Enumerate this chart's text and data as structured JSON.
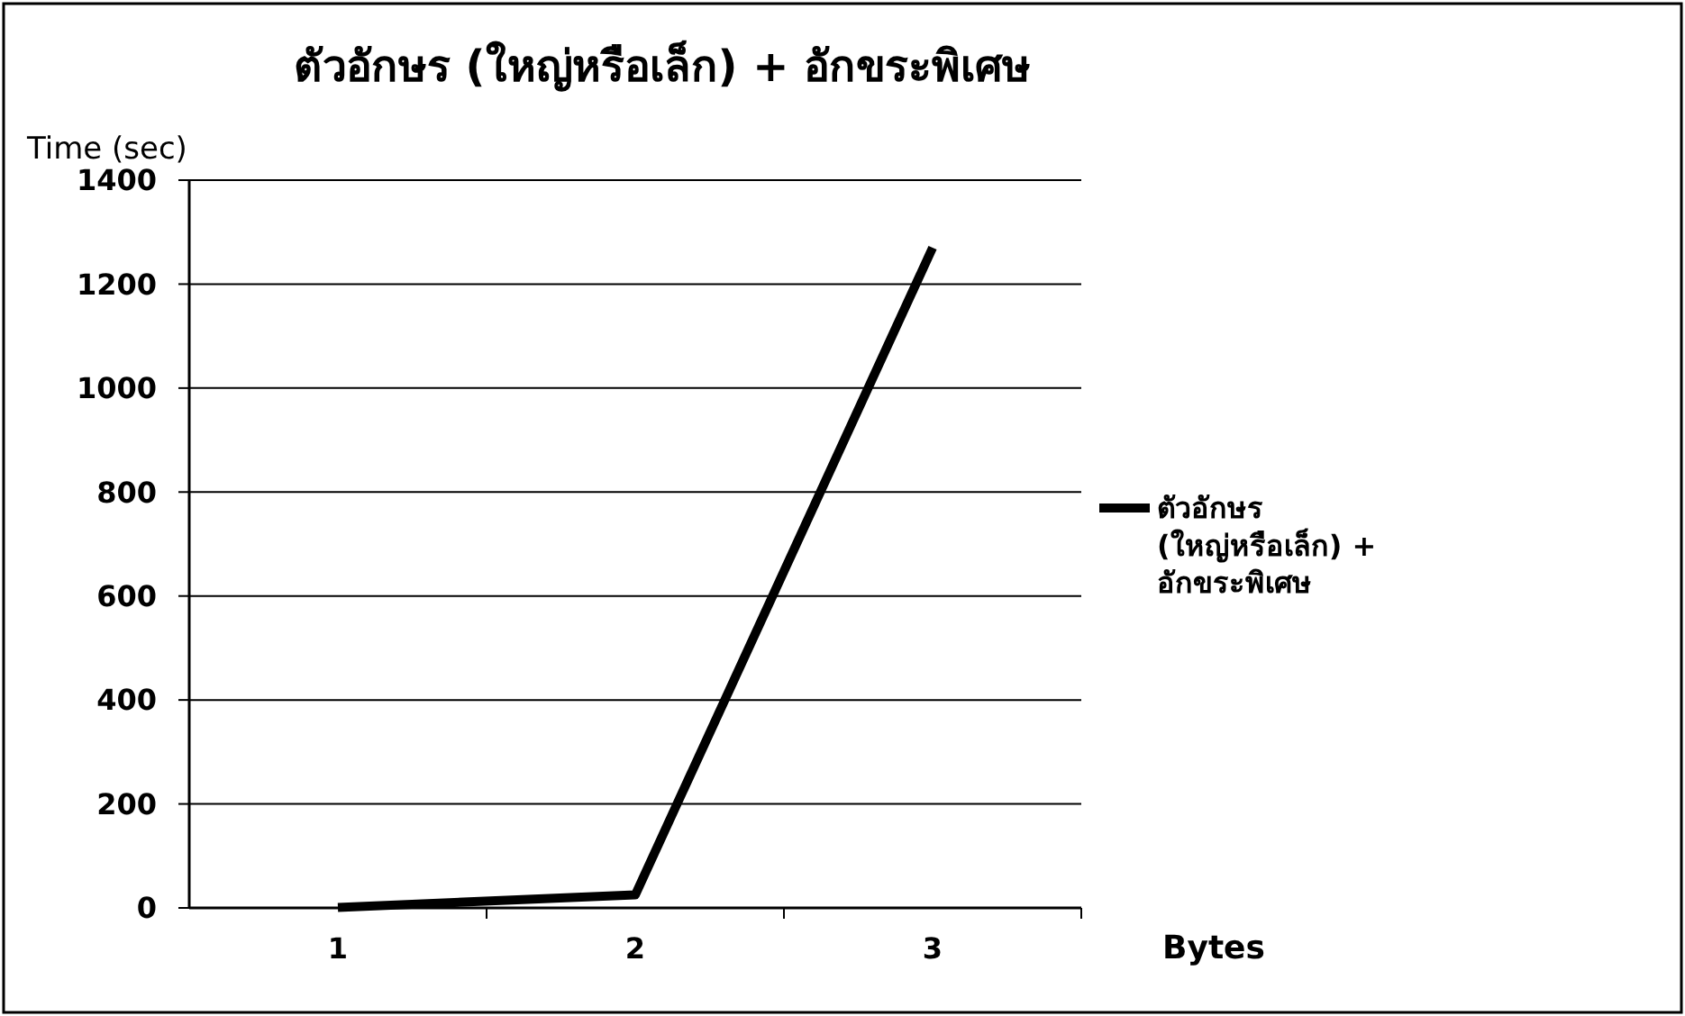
{
  "chart_data": {
    "type": "line",
    "title": "ตัวอักษร (ใหญ่หรือเล็ก) + อักขระพิเศษ",
    "xlabel": "Bytes",
    "ylabel": "Time (sec)",
    "categories": [
      "1",
      "2",
      "3"
    ],
    "series": [
      {
        "name": "ตัวอักษร (ใหญ่หรือเล็ก) + อักขระพิเศษ",
        "color": "#000000",
        "values": [
          1,
          25,
          1270
        ]
      }
    ],
    "ylim": [
      0,
      1400
    ],
    "yticks": [
      0,
      200,
      400,
      600,
      800,
      1000,
      1200,
      1400
    ],
    "grid": "y",
    "legend": "right",
    "marker": "none",
    "line_style": "solid"
  }
}
